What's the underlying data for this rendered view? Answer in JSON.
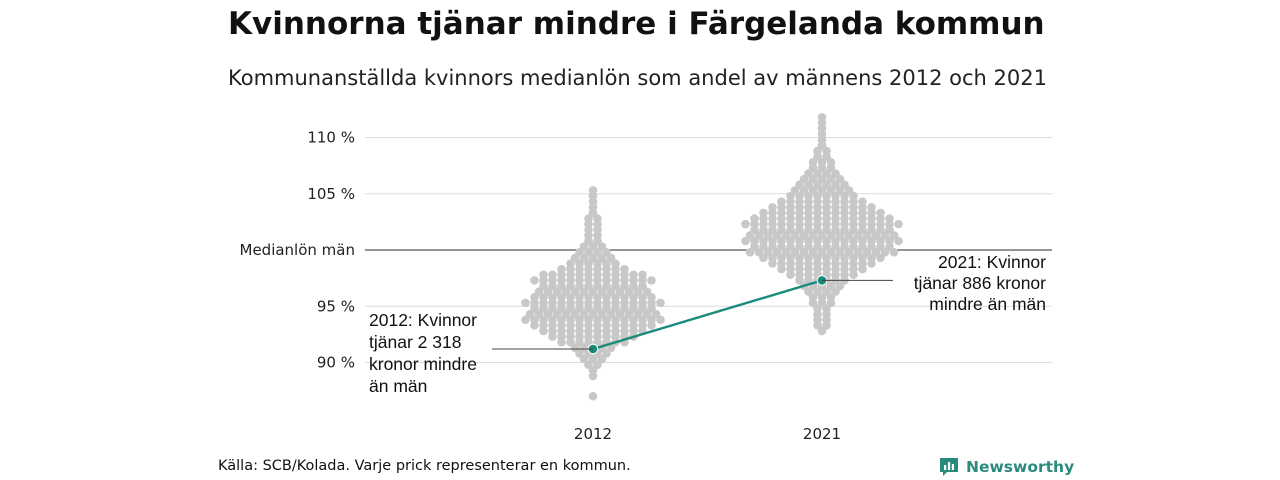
{
  "title": "Kvinnorna tjänar mindre i Färgelanda kommun",
  "subtitle": "Kommunanställda kvinnors medianlön som andel av männens 2012 och 2021",
  "source": "Källa: SCB/Kolada. Varje prick representerar en kommun.",
  "brand": {
    "name": "Newsworthy",
    "icon": "newsworthy-logo-icon"
  },
  "colors": {
    "dots": "#c8c8c8",
    "highlight": "#1a8a7a",
    "gridline": "#dcdcdc",
    "reference_line": "#555555"
  },
  "chart_data": {
    "type": "beeswarm",
    "title": "Kvinnorna tjänar mindre i Färgelanda kommun",
    "subtitle": "Kommunanställda kvinnors medianlön som andel av männens 2012 och 2021",
    "categories": [
      "2012",
      "2021"
    ],
    "y_ticks": [
      {
        "value": 90,
        "label": "90 %"
      },
      {
        "value": 95,
        "label": "95 %"
      },
      {
        "value": 100,
        "label": "Medianlön män"
      },
      {
        "value": 105,
        "label": "105 %"
      },
      {
        "value": 110,
        "label": "110 %"
      }
    ],
    "ylim": [
      86,
      112
    ],
    "reference_line": {
      "value": 100,
      "label": "Medianlön män"
    },
    "grid": true,
    "highlight": {
      "name": "Färgelanda",
      "points": [
        {
          "x": "2012",
          "y": 91.2
        },
        {
          "x": "2021",
          "y": 97.3
        }
      ]
    },
    "annotations": [
      {
        "x": "2012",
        "y": 91.2,
        "lines": [
          "2012: Kvinnor",
          "tjänar 2 318",
          "kronor mindre",
          "än män"
        ]
      },
      {
        "x": "2021",
        "y": 97.3,
        "lines": [
          "2021: Kvinnor",
          "tjänar 886 kronor",
          "mindre än män"
        ]
      }
    ],
    "distributions": [
      {
        "x": "2012",
        "bins": [
          [
            87.0,
            1
          ],
          [
            88.8,
            1
          ],
          [
            89.3,
            1
          ],
          [
            89.8,
            2
          ],
          [
            90.3,
            3
          ],
          [
            90.8,
            4
          ],
          [
            91.3,
            5
          ],
          [
            91.8,
            8
          ],
          [
            92.3,
            10
          ],
          [
            92.8,
            12
          ],
          [
            93.3,
            14
          ],
          [
            93.8,
            16
          ],
          [
            94.3,
            15
          ],
          [
            94.8,
            14
          ],
          [
            95.3,
            16
          ],
          [
            95.8,
            14
          ],
          [
            96.3,
            13
          ],
          [
            96.8,
            12
          ],
          [
            97.3,
            14
          ],
          [
            97.8,
            12
          ],
          [
            98.3,
            8
          ],
          [
            98.8,
            6
          ],
          [
            99.3,
            5
          ],
          [
            99.8,
            4
          ],
          [
            100.3,
            3
          ],
          [
            100.8,
            2
          ],
          [
            101.3,
            2
          ],
          [
            101.8,
            2
          ],
          [
            102.3,
            2
          ],
          [
            102.8,
            2
          ],
          [
            103.3,
            1
          ],
          [
            103.8,
            1
          ],
          [
            104.3,
            1
          ],
          [
            104.8,
            1
          ],
          [
            105.3,
            1
          ]
        ]
      },
      {
        "x": "2021",
        "bins": [
          [
            92.8,
            1
          ],
          [
            93.3,
            2
          ],
          [
            93.8,
            2
          ],
          [
            94.3,
            2
          ],
          [
            94.8,
            2
          ],
          [
            95.3,
            3
          ],
          [
            95.8,
            3
          ],
          [
            96.3,
            4
          ],
          [
            96.8,
            5
          ],
          [
            97.3,
            6
          ],
          [
            97.8,
            8
          ],
          [
            98.3,
            10
          ],
          [
            98.8,
            12
          ],
          [
            99.3,
            14
          ],
          [
            99.8,
            17
          ],
          [
            100.3,
            16
          ],
          [
            100.8,
            18
          ],
          [
            101.3,
            17
          ],
          [
            101.8,
            16
          ],
          [
            102.3,
            18
          ],
          [
            102.8,
            16
          ],
          [
            103.3,
            14
          ],
          [
            103.8,
            12
          ],
          [
            104.3,
            10
          ],
          [
            104.8,
            8
          ],
          [
            105.3,
            7
          ],
          [
            105.8,
            6
          ],
          [
            106.3,
            5
          ],
          [
            106.8,
            4
          ],
          [
            107.3,
            3
          ],
          [
            107.8,
            3
          ],
          [
            108.3,
            2
          ],
          [
            108.8,
            2
          ],
          [
            109.3,
            1
          ],
          [
            109.8,
            1
          ],
          [
            110.3,
            1
          ],
          [
            110.8,
            1
          ],
          [
            111.3,
            1
          ],
          [
            111.8,
            1
          ]
        ]
      }
    ]
  }
}
